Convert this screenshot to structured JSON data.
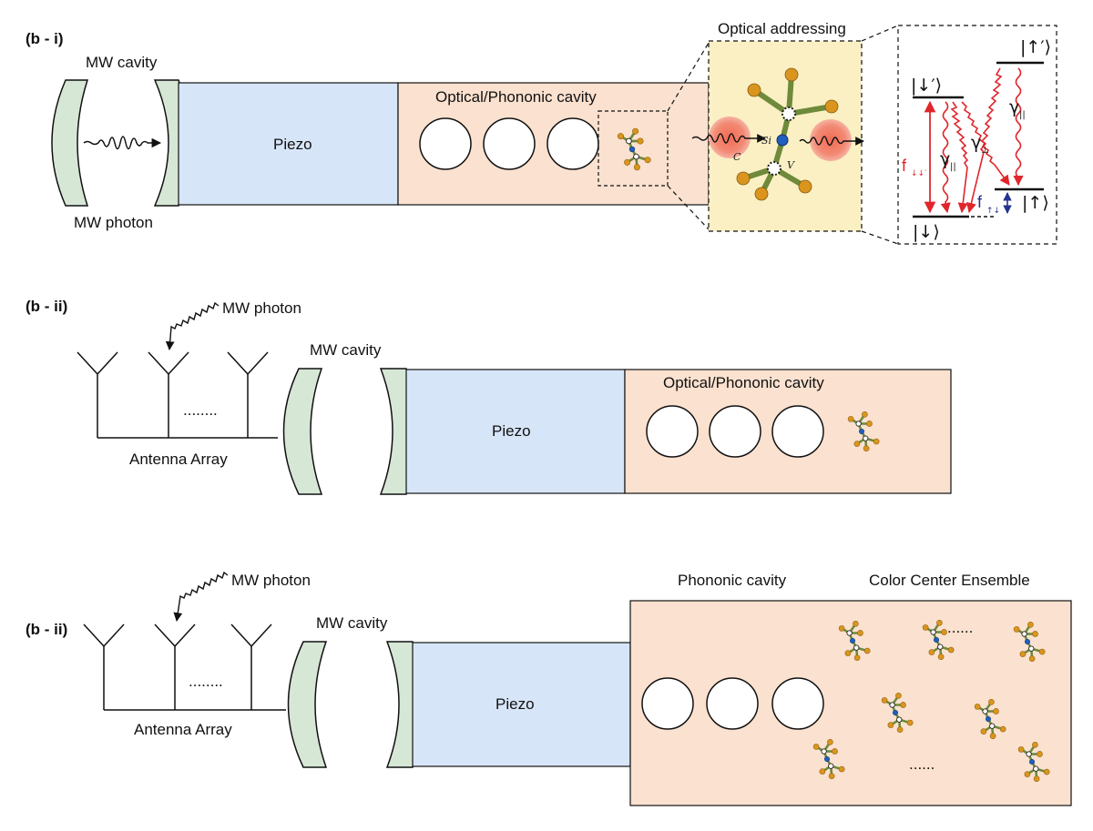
{
  "panel_i": {
    "tag": "(b - i)",
    "mw_cavity": "MW cavity",
    "mw_photon": "MW photon",
    "piezo": "Piezo",
    "cavity": "Optical/Phononic cavity",
    "optical_addressing": "Optical addressing",
    "atom_si": "Si",
    "atom_c": "C",
    "atom_v": "V",
    "levels": {
      "up_prime": "|↑′⟩",
      "down_prime": "|↓′⟩",
      "down": "|↓⟩",
      "up": "|↑⟩",
      "f_main": "f",
      "f_main_sub": "↓↓′",
      "f_small": "f",
      "f_small_sub": "↑↓",
      "gamma_par": "γ",
      "gamma_par_sub": "||",
      "gamma_perp": "γ",
      "gamma_perp_sub": "⊥"
    }
  },
  "panel_ii": {
    "tag": "(b - ii)",
    "mw_photon": "MW photon",
    "mw_cavity": "MW cavity",
    "dots": "........",
    "antenna_array": "Antenna Array",
    "piezo": "Piezo",
    "cavity": "Optical/Phononic cavity"
  },
  "panel_iii": {
    "tag": "(b - ii)",
    "mw_photon": "MW photon",
    "mw_cavity": "MW cavity",
    "dots": "........",
    "antenna_array": "Antenna Array",
    "piezo": "Piezo",
    "phononic_cavity": "Phononic cavity",
    "ensemble": "Color Center Ensemble",
    "ens_dots": "......"
  },
  "colors": {
    "mirror_green": "#d7e7d6",
    "piezo_blue": "#d7e5f8",
    "cavity_peach": "#fbe1cf",
    "zoom_yellow": "#fbf0c3",
    "level_red": "#e0262c",
    "level_blue": "#25338f",
    "bond_green": "#6e8a3a",
    "atom_orange": "#d9951d"
  }
}
